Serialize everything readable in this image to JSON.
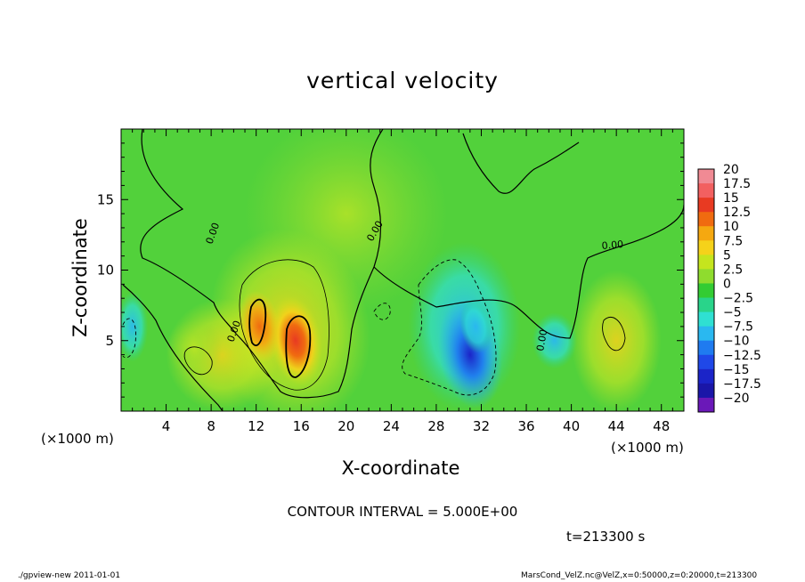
{
  "chart_data": {
    "type": "heatmap",
    "title": "vertical velocity",
    "xlabel": "X-coordinate",
    "ylabel": "Z-coordinate",
    "x_unit": "(×1000 m)",
    "y_unit": "(×1000 m)",
    "xlim": [
      0,
      50
    ],
    "ylim": [
      0,
      20
    ],
    "x_ticks": [
      4,
      8,
      12,
      16,
      20,
      24,
      28,
      32,
      36,
      40,
      44,
      48
    ],
    "y_ticks": [
      5,
      10,
      15
    ],
    "colorbar": {
      "levels": [
        20,
        17.5,
        15,
        12.5,
        10,
        7.5,
        5,
        2.5,
        0,
        -2.5,
        -5,
        -7.5,
        -10,
        -12.5,
        -15,
        -17.5,
        -20
      ],
      "colors": [
        "#f08a94",
        "#f26060",
        "#e83a22",
        "#f06b10",
        "#f5a810",
        "#f5d21a",
        "#c5e51e",
        "#8fdc2e",
        "#33cc33",
        "#29d48a",
        "#2fe0d2",
        "#2ab8f0",
        "#1f7bf0",
        "#1f48e8",
        "#1b24c8",
        "#1a16a8",
        "#6a18b8"
      ]
    },
    "contour_label": "0.00",
    "contour_interval_text": "CONTOUR INTERVAL = 5.000E+00",
    "time_text": "t=213300 s",
    "anomalies": [
      {
        "x": 15.5,
        "z": 5.0,
        "value": 12.5,
        "sign": "positive"
      },
      {
        "x": 12.3,
        "z": 6.0,
        "value": 10.0,
        "sign": "positive"
      },
      {
        "x": 31.0,
        "z": 4.0,
        "value": -15.0,
        "sign": "negative"
      },
      {
        "x": 31.5,
        "z": 6.0,
        "value": -7.5,
        "sign": "negative"
      },
      {
        "x": 6.5,
        "z": 4.5,
        "value": 5.0,
        "sign": "positive"
      }
    ]
  },
  "footer": {
    "left": "./gpview-new   2011-01-01",
    "right": "MarsCond_VelZ.nc@VelZ,x=0:50000,z=0:20000,t=213300"
  }
}
